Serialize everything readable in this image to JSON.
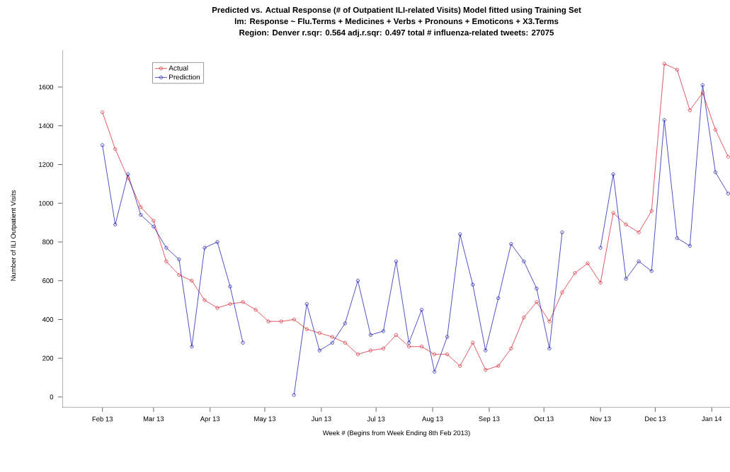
{
  "chart_data": {
    "type": "line",
    "title": "Predicted vs. Actual Response (# of Outpatient ILI-related Visits)   Model fitted using Training Set",
    "subtitle": "lm: Response ~ Flu.Terms + Medicines + Verbs + Pronouns + Emoticons + X3.Terms",
    "annotations": [
      "Region: Denver   r.sqr: 0.564   adj.r.sqr: 0.497   total # influenza-related tweets: 27075"
    ],
    "xlabel": "Week # (Begins from Week Ending 8th Feb 2013)",
    "ylabel": "Number of ILI Outpatient Visits",
    "x": [
      "2013-02-01",
      "2013-02-08",
      "2013-02-15",
      "2013-02-22",
      "2013-03-01",
      "2013-03-08",
      "2013-03-15",
      "2013-03-22",
      "2013-03-29",
      "2013-04-05",
      "2013-04-12",
      "2013-04-19",
      "2013-04-26",
      "2013-05-03",
      "2013-05-10",
      "2013-05-17",
      "2013-05-24",
      "2013-05-31",
      "2013-06-07",
      "2013-06-14",
      "2013-06-21",
      "2013-06-28",
      "2013-07-05",
      "2013-07-12",
      "2013-07-19",
      "2013-07-26",
      "2013-08-02",
      "2013-08-09",
      "2013-08-16",
      "2013-08-23",
      "2013-08-30",
      "2013-09-06",
      "2013-09-13",
      "2013-09-20",
      "2013-09-27",
      "2013-10-04",
      "2013-10-11",
      "2013-10-18",
      "2013-10-25",
      "2013-11-01",
      "2013-11-08",
      "2013-11-15",
      "2013-11-22",
      "2013-11-29",
      "2013-12-06",
      "2013-12-13",
      "2013-12-20",
      "2013-12-27",
      "2014-01-03",
      "2014-01-10"
    ],
    "series": [
      {
        "name": "Actual",
        "color": "#d8303c",
        "values": [
          1470,
          1280,
          1130,
          980,
          910,
          700,
          630,
          600,
          500,
          460,
          480,
          490,
          450,
          390,
          390,
          400,
          350,
          330,
          310,
          280,
          220,
          240,
          250,
          320,
          260,
          260,
          220,
          220,
          160,
          280,
          140,
          160,
          250,
          410,
          490,
          390,
          540,
          640,
          690,
          590,
          950,
          890,
          850,
          960,
          1720,
          1690,
          1480,
          1570,
          1380,
          1240
        ]
      },
      {
        "name": "Prediction",
        "color": "#2424b4",
        "values": [
          1300,
          890,
          1150,
          940,
          880,
          770,
          710,
          260,
          770,
          800,
          570,
          280,
          null,
          null,
          null,
          10,
          480,
          240,
          280,
          380,
          600,
          320,
          340,
          700,
          280,
          450,
          130,
          310,
          840,
          580,
          240,
          510,
          790,
          700,
          560,
          250,
          850,
          null,
          null,
          770,
          1150,
          610,
          700,
          650,
          1430,
          820,
          780,
          1610,
          1160,
          1050
        ]
      }
    ],
    "xlim": [
      "2013-01-10",
      "2014-01-11"
    ],
    "xticks": [
      {
        "value": "2013-02-01",
        "label": "Feb 13"
      },
      {
        "value": "2013-03-01",
        "label": "Mar 13"
      },
      {
        "value": "2013-04-01",
        "label": "Apr 13"
      },
      {
        "value": "2013-05-01",
        "label": "May 13"
      },
      {
        "value": "2013-06-01",
        "label": "Jun 13"
      },
      {
        "value": "2013-07-01",
        "label": "Jul 13"
      },
      {
        "value": "2013-08-01",
        "label": "Aug 13"
      },
      {
        "value": "2013-09-01",
        "label": "Sep 13"
      },
      {
        "value": "2013-10-01",
        "label": "Oct 13"
      },
      {
        "value": "2013-11-01",
        "label": "Nov 13"
      },
      {
        "value": "2013-12-01",
        "label": "Dec 13"
      },
      {
        "value": "2014-01-01",
        "label": "Jan 14"
      }
    ],
    "ylim": [
      -55,
      1790
    ],
    "yticks": [
      0,
      200,
      400,
      600,
      800,
      1000,
      1200,
      1400,
      1600
    ],
    "grid": false,
    "legend": "top left",
    "marker": "circle",
    "line_style": "solid"
  }
}
